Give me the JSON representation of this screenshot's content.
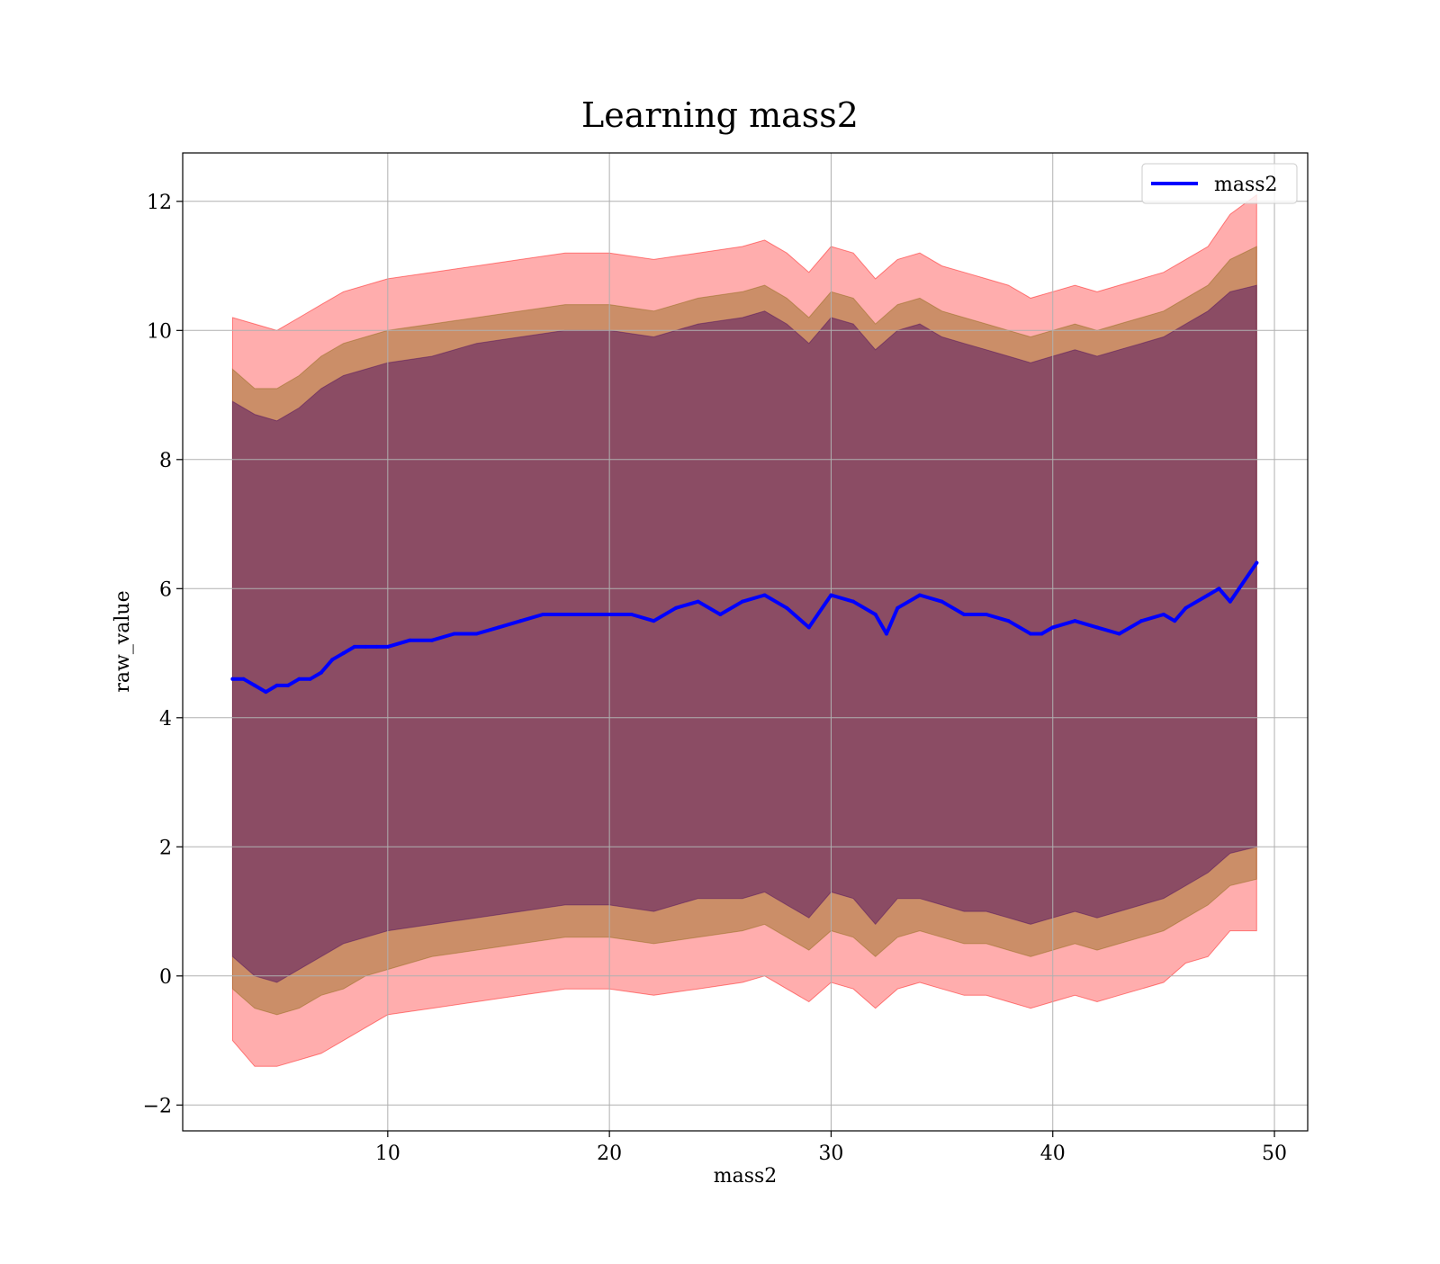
{
  "chart_data": {
    "type": "line",
    "title": "Learning mass2",
    "xlabel": "mass2",
    "ylabel": "raw_value",
    "xlim": [
      0.75,
      51.5
    ],
    "ylim": [
      -2.4,
      12.75
    ],
    "xticks": [
      10,
      20,
      30,
      40,
      50
    ],
    "yticks": [
      -2,
      0,
      2,
      4,
      6,
      8,
      10,
      12
    ],
    "xtick_labels": [
      "10",
      "20",
      "30",
      "40",
      "50"
    ],
    "ytick_labels": [
      "−2",
      "0",
      "2",
      "4",
      "6",
      "8",
      "10",
      "12"
    ],
    "grid": true,
    "legend": {
      "position": "top-right",
      "entries": [
        "mass2"
      ]
    },
    "colors": {
      "line": "#0000ff",
      "band_outer": "#ff0000",
      "band_middle": "#8b6914",
      "band_inner": "#4b0a5f"
    },
    "series": [
      {
        "name": "mass2",
        "x": [
          3.0,
          3.5,
          4.0,
          4.5,
          5.0,
          5.5,
          6.0,
          6.5,
          7.0,
          7.5,
          8.0,
          8.5,
          9.0,
          9.5,
          10.0,
          11.0,
          12.0,
          13.0,
          14.0,
          15.0,
          16.0,
          17.0,
          18.0,
          19.0,
          20.0,
          21.0,
          22.0,
          23.0,
          24.0,
          25.0,
          26.0,
          27.0,
          28.0,
          29.0,
          30.0,
          31.0,
          32.0,
          32.5,
          33.0,
          34.0,
          35.0,
          36.0,
          37.0,
          38.0,
          39.0,
          39.5,
          40.0,
          41.0,
          42.0,
          43.0,
          44.0,
          45.0,
          45.5,
          46.0,
          47.0,
          47.5,
          48.0,
          49.2
        ],
        "y": [
          4.6,
          4.6,
          4.5,
          4.4,
          4.5,
          4.5,
          4.6,
          4.6,
          4.7,
          4.9,
          5.0,
          5.1,
          5.1,
          5.1,
          5.1,
          5.2,
          5.2,
          5.3,
          5.3,
          5.4,
          5.5,
          5.6,
          5.6,
          5.6,
          5.6,
          5.6,
          5.5,
          5.7,
          5.8,
          5.6,
          5.8,
          5.9,
          5.7,
          5.4,
          5.9,
          5.8,
          5.6,
          5.3,
          5.7,
          5.9,
          5.8,
          5.6,
          5.6,
          5.5,
          5.3,
          5.3,
          5.4,
          5.5,
          5.4,
          5.3,
          5.5,
          5.6,
          5.5,
          5.7,
          5.9,
          6.0,
          5.8,
          6.4
        ]
      }
    ],
    "bands": [
      {
        "name": "outer",
        "x": [
          3.0,
          4.0,
          5.0,
          6.0,
          7.0,
          8.0,
          9.0,
          10.0,
          12.0,
          14.0,
          16.0,
          18.0,
          20.0,
          22.0,
          24.0,
          26.0,
          27.0,
          28.0,
          29.0,
          30.0,
          31.0,
          32.0,
          33.0,
          34.0,
          35.0,
          36.0,
          37.0,
          38.0,
          39.0,
          40.0,
          41.0,
          42.0,
          43.0,
          44.0,
          45.0,
          46.0,
          47.0,
          48.0,
          49.2
        ],
        "upper": [
          10.2,
          10.1,
          10.0,
          10.2,
          10.4,
          10.6,
          10.7,
          10.8,
          10.9,
          11.0,
          11.1,
          11.2,
          11.2,
          11.1,
          11.2,
          11.3,
          11.4,
          11.2,
          10.9,
          11.3,
          11.2,
          10.8,
          11.1,
          11.2,
          11.0,
          10.9,
          10.8,
          10.7,
          10.5,
          10.6,
          10.7,
          10.6,
          10.7,
          10.8,
          10.9,
          11.1,
          11.3,
          11.8,
          12.1
        ],
        "lower": [
          -1.0,
          -1.4,
          -1.4,
          -1.3,
          -1.2,
          -1.0,
          -0.8,
          -0.6,
          -0.5,
          -0.4,
          -0.3,
          -0.2,
          -0.2,
          -0.3,
          -0.2,
          -0.1,
          0.0,
          -0.2,
          -0.4,
          -0.1,
          -0.2,
          -0.5,
          -0.2,
          -0.1,
          -0.2,
          -0.3,
          -0.3,
          -0.4,
          -0.5,
          -0.4,
          -0.3,
          -0.4,
          -0.3,
          -0.2,
          -0.1,
          0.2,
          0.3,
          0.7,
          0.7
        ]
      },
      {
        "name": "middle",
        "x": [
          3.0,
          4.0,
          5.0,
          6.0,
          7.0,
          8.0,
          9.0,
          10.0,
          12.0,
          14.0,
          16.0,
          18.0,
          20.0,
          22.0,
          24.0,
          26.0,
          27.0,
          28.0,
          29.0,
          30.0,
          31.0,
          32.0,
          33.0,
          34.0,
          35.0,
          36.0,
          37.0,
          38.0,
          39.0,
          40.0,
          41.0,
          42.0,
          43.0,
          44.0,
          45.0,
          46.0,
          47.0,
          48.0,
          49.2
        ],
        "upper": [
          9.4,
          9.1,
          9.1,
          9.3,
          9.6,
          9.8,
          9.9,
          10.0,
          10.1,
          10.2,
          10.3,
          10.4,
          10.4,
          10.3,
          10.5,
          10.6,
          10.7,
          10.5,
          10.2,
          10.6,
          10.5,
          10.1,
          10.4,
          10.5,
          10.3,
          10.2,
          10.1,
          10.0,
          9.9,
          10.0,
          10.1,
          10.0,
          10.1,
          10.2,
          10.3,
          10.5,
          10.7,
          11.1,
          11.3
        ],
        "lower": [
          -0.2,
          -0.5,
          -0.6,
          -0.5,
          -0.3,
          -0.2,
          0.0,
          0.1,
          0.3,
          0.4,
          0.5,
          0.6,
          0.6,
          0.5,
          0.6,
          0.7,
          0.8,
          0.6,
          0.4,
          0.7,
          0.6,
          0.3,
          0.6,
          0.7,
          0.6,
          0.5,
          0.5,
          0.4,
          0.3,
          0.4,
          0.5,
          0.4,
          0.5,
          0.6,
          0.7,
          0.9,
          1.1,
          1.4,
          1.5
        ]
      },
      {
        "name": "inner",
        "x": [
          3.0,
          4.0,
          5.0,
          6.0,
          7.0,
          8.0,
          9.0,
          10.0,
          12.0,
          14.0,
          16.0,
          18.0,
          20.0,
          22.0,
          24.0,
          26.0,
          27.0,
          28.0,
          29.0,
          30.0,
          31.0,
          32.0,
          33.0,
          34.0,
          35.0,
          36.0,
          37.0,
          38.0,
          39.0,
          40.0,
          41.0,
          42.0,
          43.0,
          44.0,
          45.0,
          46.0,
          47.0,
          48.0,
          49.2
        ],
        "upper": [
          8.9,
          8.7,
          8.6,
          8.8,
          9.1,
          9.3,
          9.4,
          9.5,
          9.6,
          9.8,
          9.9,
          10.0,
          10.0,
          9.9,
          10.1,
          10.2,
          10.3,
          10.1,
          9.8,
          10.2,
          10.1,
          9.7,
          10.0,
          10.1,
          9.9,
          9.8,
          9.7,
          9.6,
          9.5,
          9.6,
          9.7,
          9.6,
          9.7,
          9.8,
          9.9,
          10.1,
          10.3,
          10.6,
          10.7
        ],
        "lower": [
          0.3,
          0.0,
          -0.1,
          0.1,
          0.3,
          0.5,
          0.6,
          0.7,
          0.8,
          0.9,
          1.0,
          1.1,
          1.1,
          1.0,
          1.2,
          1.2,
          1.3,
          1.1,
          0.9,
          1.3,
          1.2,
          0.8,
          1.2,
          1.2,
          1.1,
          1.0,
          1.0,
          0.9,
          0.8,
          0.9,
          1.0,
          0.9,
          1.0,
          1.1,
          1.2,
          1.4,
          1.6,
          1.9,
          2.0
        ]
      }
    ]
  }
}
